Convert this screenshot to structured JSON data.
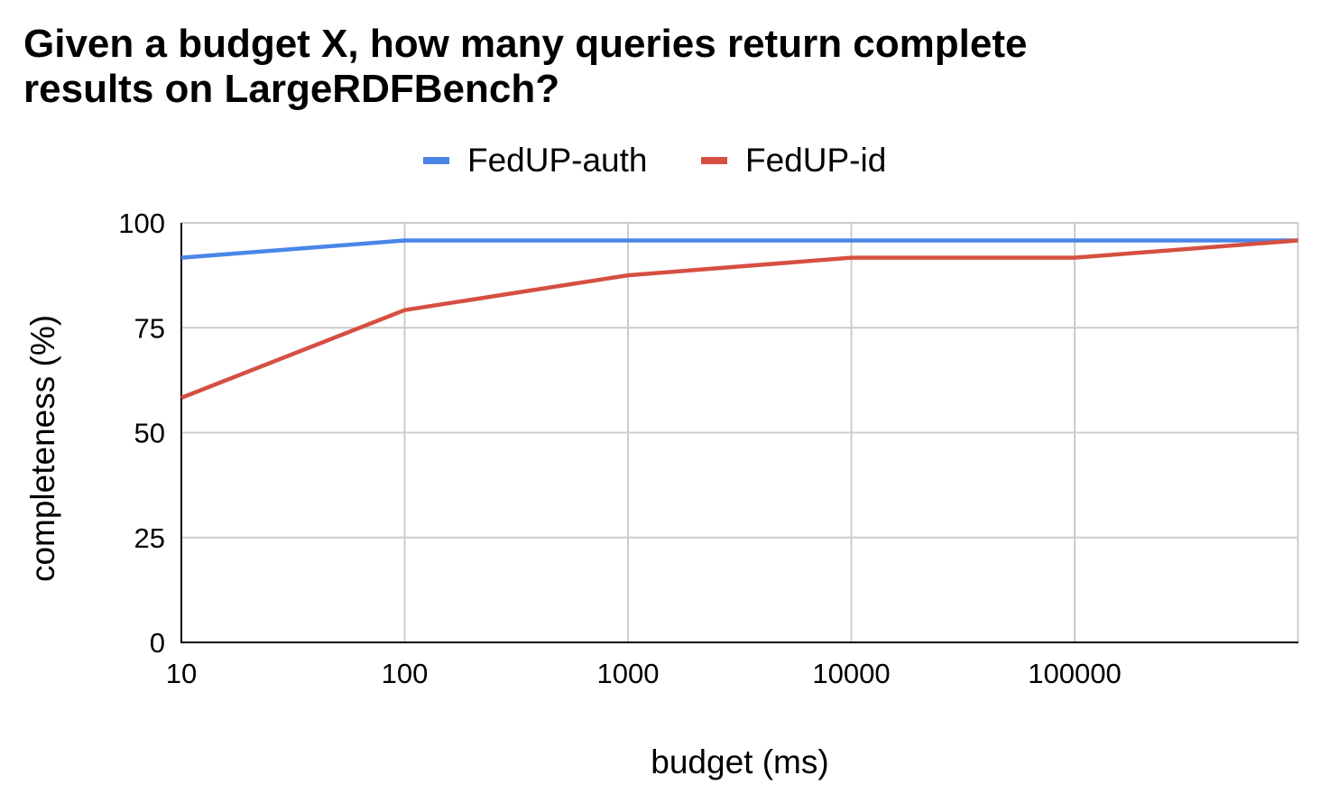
{
  "chart_data": {
    "type": "line",
    "title_lines": [
      "Given a budget X, how many queries return complete",
      "results on LargeRDFBench?"
    ],
    "xlabel": "budget (ms)",
    "ylabel": "completeness (%)",
    "x_scale": "log",
    "x": [
      10,
      100,
      1000,
      10000,
      100000,
      1000000
    ],
    "x_tick_labels": [
      "10",
      "100",
      "1000",
      "10000",
      "100000"
    ],
    "y_ticks": [
      0,
      25,
      50,
      75,
      100
    ],
    "ylim": [
      0,
      100
    ],
    "grid": true,
    "legend_position": "top",
    "series": [
      {
        "name": "FedUP-auth",
        "color": "#4a86e8",
        "values": [
          91.7,
          95.8,
          95.8,
          95.8,
          95.8,
          95.8
        ]
      },
      {
        "name": "FedUP-id",
        "color": "#d64f42",
        "values": [
          58.3,
          79.2,
          87.5,
          91.7,
          91.7,
          95.8
        ]
      }
    ]
  }
}
